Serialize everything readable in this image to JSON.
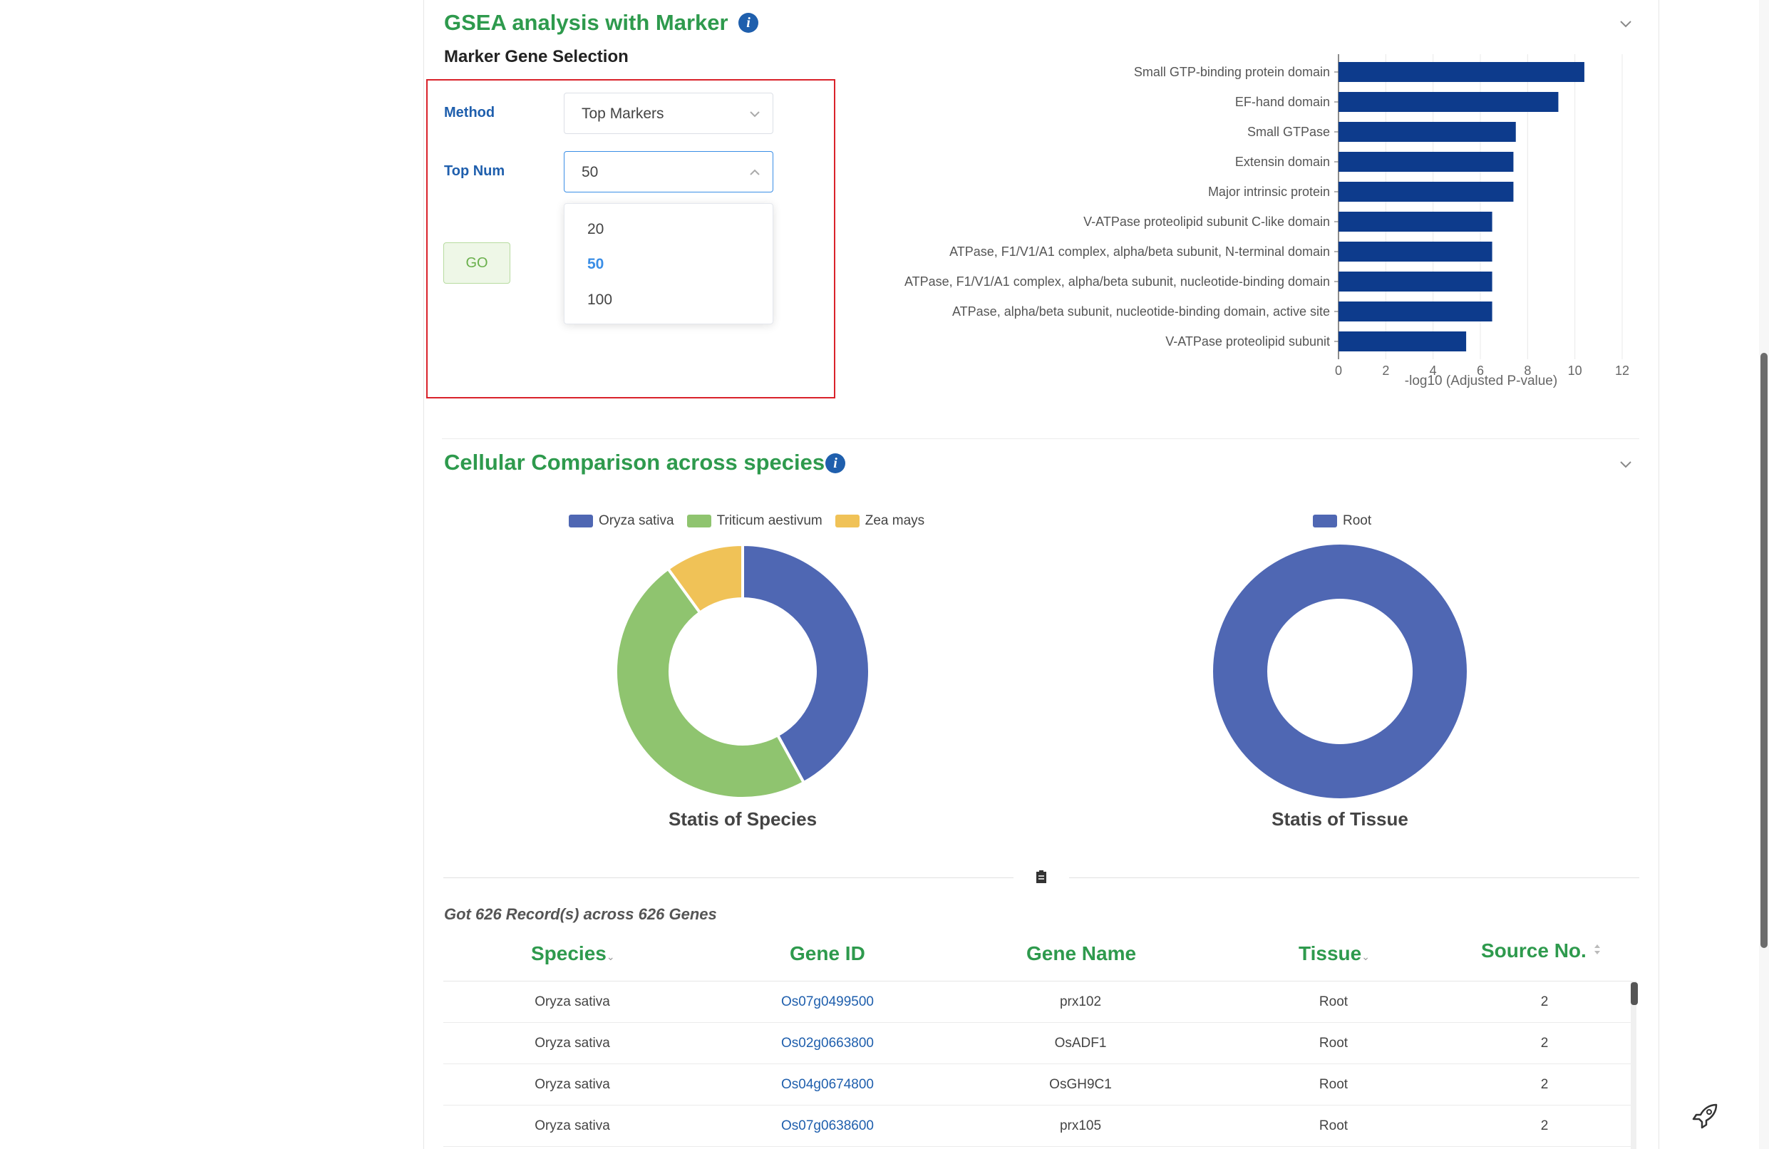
{
  "gsea": {
    "title": "GSEA analysis with Marker",
    "subheading": "Marker Gene Selection",
    "method_label": "Method",
    "method_value": "Top Markers",
    "topnum_label": "Top Num",
    "topnum_value": "50",
    "topnum_options": [
      "20",
      "50",
      "100"
    ],
    "topnum_selected": "50",
    "go_label": "GO"
  },
  "chart_data": {
    "type": "bar",
    "orientation": "horizontal",
    "categories": [
      "Small GTP-binding protein domain",
      "EF-hand domain",
      "Small GTPase",
      "Extensin domain",
      "Major intrinsic protein",
      "V-ATPase proteolipid subunit C-like domain",
      "ATPase, F1/V1/A1 complex, alpha/beta subunit, N-terminal domain",
      "ATPase, F1/V1/A1 complex, alpha/beta subunit, nucleotide-binding domain",
      "ATPase, alpha/beta subunit, nucleotide-binding domain, active site",
      "V-ATPase proteolipid subunit"
    ],
    "values": [
      10.4,
      9.3,
      7.5,
      7.4,
      7.4,
      6.5,
      6.5,
      6.5,
      6.5,
      5.4
    ],
    "xlabel": "-log10 (Adjusted P-value)",
    "xlim": [
      0,
      12
    ],
    "xticks": [
      "0",
      "2",
      "4",
      "6",
      "8",
      "10",
      "12"
    ],
    "bar_color": "#0d3b8c",
    "grid": true
  },
  "comparison": {
    "title": "Cellular Comparison across species",
    "species_chart": {
      "caption": "Statis of Species",
      "type": "pie",
      "legend": [
        {
          "name": "Oryza sativa",
          "color": "#4f67b3",
          "value": 0.42
        },
        {
          "name": "Triticum aestivum",
          "color": "#8fc46f",
          "value": 0.48
        },
        {
          "name": "Zea mays",
          "color": "#f0c257",
          "value": 0.1
        }
      ]
    },
    "tissue_chart": {
      "caption": "Statis of Tissue",
      "type": "pie",
      "legend": [
        {
          "name": "Root",
          "color": "#4f67b3",
          "value": 1.0
        }
      ]
    }
  },
  "table": {
    "summary": "Got 626 Record(s) across 626 Genes",
    "headers": [
      "Species",
      "Gene ID",
      "Gene Name",
      "Tissue",
      "Source No."
    ],
    "rows": [
      [
        "Oryza sativa",
        "Os07g0499500",
        "prx102",
        "Root",
        "2"
      ],
      [
        "Oryza sativa",
        "Os02g0663800",
        "OsADF1",
        "Root",
        "2"
      ],
      [
        "Oryza sativa",
        "Os04g0674800",
        "OsGH9C1",
        "Root",
        "2"
      ],
      [
        "Oryza sativa",
        "Os07g0638600",
        "prx105",
        "Root",
        "2"
      ]
    ]
  },
  "icons": [
    "info-icon",
    "chevron-down-icon",
    "chevron-up-icon",
    "clipboard-icon",
    "rocket-icon",
    "sort-icon"
  ]
}
